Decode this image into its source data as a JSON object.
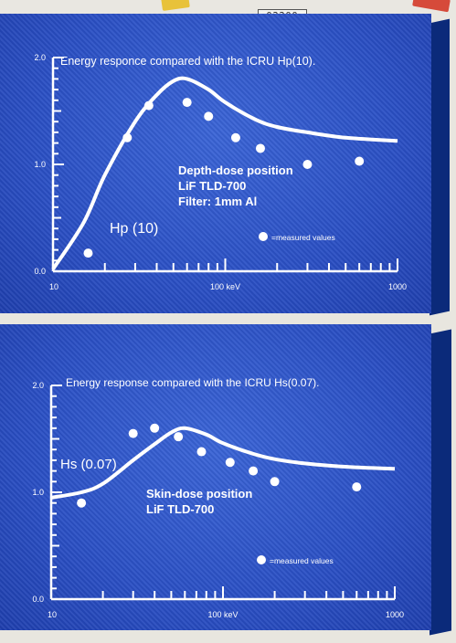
{
  "header": {
    "counter": "02200"
  },
  "colors": {
    "panel": "#2a4fc4",
    "curve": "#ffffff"
  },
  "chart_data": [
    {
      "type": "line",
      "title": "Energy responce compared with the ICRU Hp(10).",
      "xlabel": "",
      "ylabel": "",
      "x_scale": "log",
      "xlim": [
        10,
        1000
      ],
      "ylim": [
        0.0,
        2.0
      ],
      "x_tick_labels": [
        {
          "value": 10,
          "label": "10"
        },
        {
          "value": 100,
          "label": "100 keV"
        },
        {
          "value": 1000,
          "label": "1000"
        }
      ],
      "y_tick_labels": [
        {
          "value": 0.0,
          "label": "0.0"
        },
        {
          "value": 1.0,
          "label": "1.0"
        },
        {
          "value": 2.0,
          "label": "2.0"
        }
      ],
      "curve_label": "Hp (10)",
      "annotation_lines": [
        "Depth-dose position",
        "LiF TLD-700",
        "Filter: 1mm Al"
      ],
      "legend": "=measured values",
      "curve": {
        "x": [
          10,
          15,
          20,
          30,
          40,
          50,
          60,
          80,
          100,
          150,
          200,
          300,
          500,
          1000
        ],
        "y": [
          0.02,
          0.45,
          0.9,
          1.4,
          1.65,
          1.78,
          1.8,
          1.7,
          1.58,
          1.42,
          1.35,
          1.3,
          1.25,
          1.22
        ]
      },
      "measured": {
        "x": [
          16,
          27,
          36,
          60,
          80,
          115,
          160,
          300,
          600
        ],
        "y": [
          0.17,
          1.25,
          1.55,
          1.58,
          1.45,
          1.25,
          1.15,
          1.0,
          1.03
        ]
      }
    },
    {
      "type": "line",
      "title": "Energy response compared with the ICRU Hs(0.07).",
      "xlabel": "",
      "ylabel": "",
      "x_scale": "log",
      "xlim": [
        10,
        1000
      ],
      "ylim": [
        0.0,
        2.0
      ],
      "x_tick_labels": [
        {
          "value": 10,
          "label": "10"
        },
        {
          "value": 100,
          "label": "100 keV"
        },
        {
          "value": 1000,
          "label": "1000"
        }
      ],
      "y_tick_labels": [
        {
          "value": 0.0,
          "label": "0.0"
        },
        {
          "value": 1.0,
          "label": "1.0"
        },
        {
          "value": 2.0,
          "label": "2.0"
        }
      ],
      "curve_label": "Hs (0.07)",
      "annotation_lines": [
        "Skin-dose position",
        "LiF TLD-700"
      ],
      "legend": "=measured values",
      "curve": {
        "x": [
          10,
          15,
          20,
          30,
          40,
          50,
          60,
          80,
          100,
          150,
          200,
          300,
          500,
          1000
        ],
        "y": [
          0.95,
          1.0,
          1.08,
          1.3,
          1.45,
          1.56,
          1.6,
          1.54,
          1.46,
          1.36,
          1.31,
          1.27,
          1.24,
          1.22
        ]
      },
      "measured": {
        "x": [
          15,
          30,
          40,
          55,
          75,
          110,
          150,
          200,
          600
        ],
        "y": [
          0.9,
          1.55,
          1.6,
          1.52,
          1.38,
          1.28,
          1.2,
          1.1,
          1.05
        ]
      }
    }
  ]
}
